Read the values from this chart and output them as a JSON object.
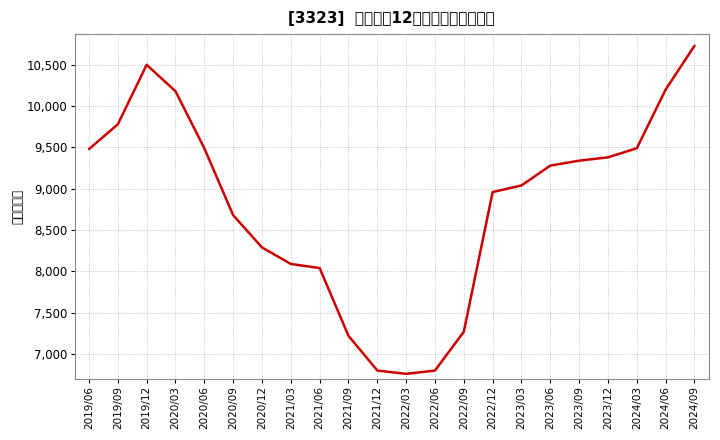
{
  "title": "[3323]  売上高の12か月移動合計の推移",
  "ylabel": "（百万円）",
  "line_color": "#cc0000",
  "background_color": "#ffffff",
  "plot_bg_color": "#ffffff",
  "grid_color": "#999999",
  "ylim": [
    6700,
    10870
  ],
  "yticks": [
    7000,
    7500,
    8000,
    8500,
    9000,
    9500,
    10000,
    10500
  ],
  "dates": [
    "2019/06",
    "2019/09",
    "2019/12",
    "2020/03",
    "2020/06",
    "2020/09",
    "2020/12",
    "2021/03",
    "2021/06",
    "2021/09",
    "2021/12",
    "2022/03",
    "2022/06",
    "2022/09",
    "2022/12",
    "2023/03",
    "2023/06",
    "2023/09",
    "2023/12",
    "2024/03",
    "2024/06",
    "2024/09"
  ],
  "values": [
    9480,
    9780,
    10500,
    10180,
    9490,
    8680,
    8290,
    8090,
    8040,
    7220,
    6800,
    6760,
    6800,
    7270,
    8960,
    9040,
    9280,
    9340,
    9380,
    9490,
    10200,
    10730
  ],
  "title_fontsize": 11,
  "tick_fontsize": 7.5,
  "ylabel_fontsize": 8.5,
  "ytick_fontsize": 8.5
}
